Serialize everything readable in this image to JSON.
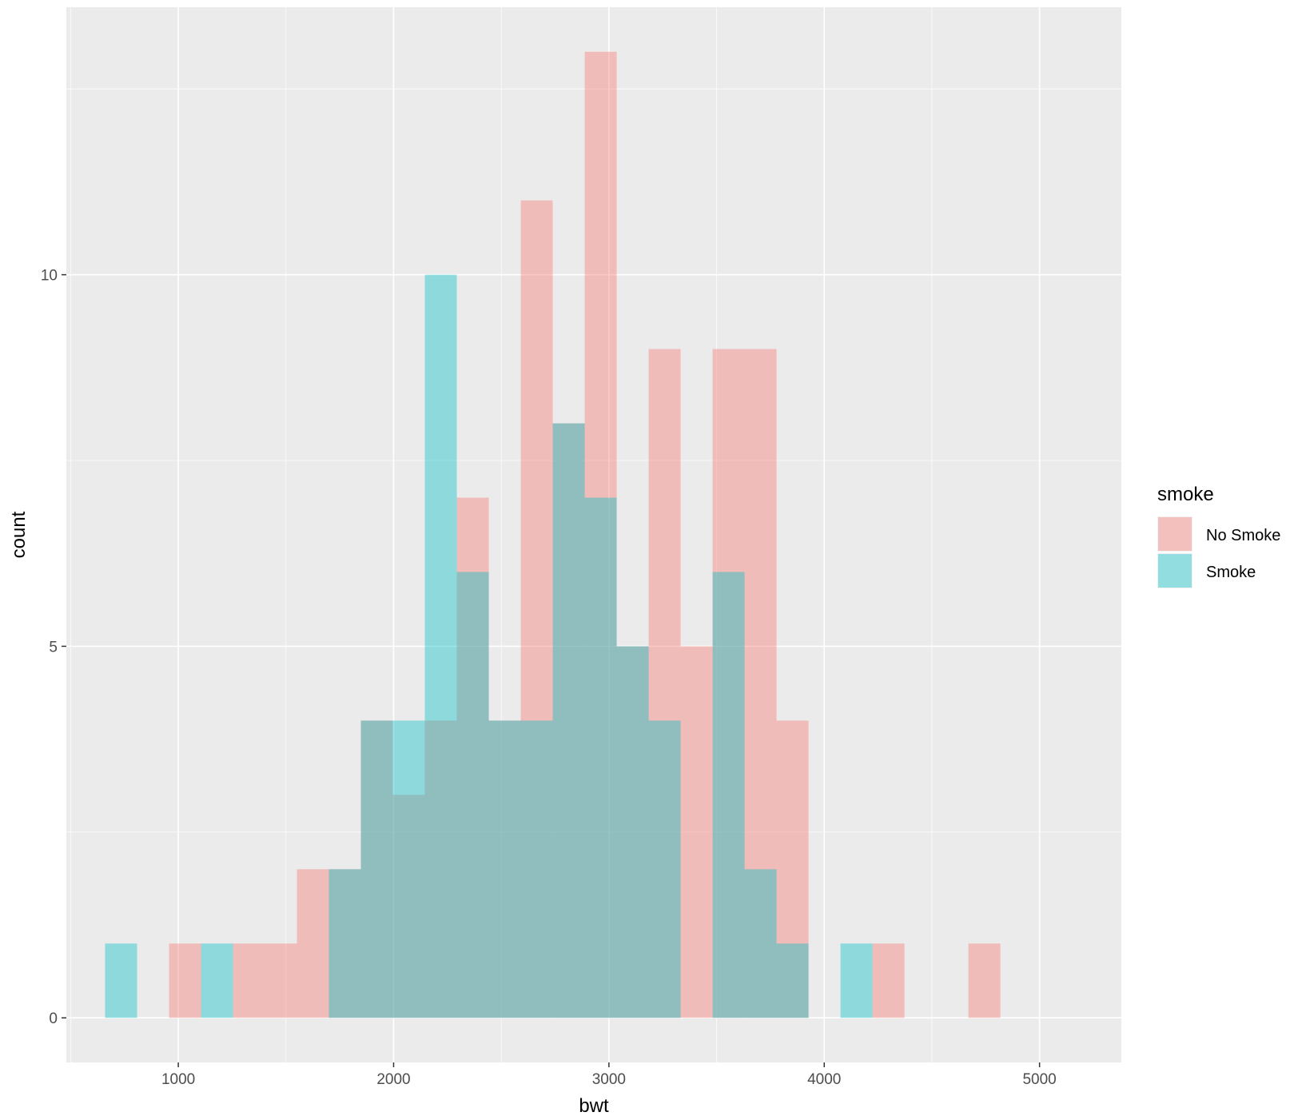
{
  "chart_data": {
    "type": "bar",
    "subtype": "histogram",
    "xlabel": "bwt",
    "ylabel": "count",
    "xlim": [
      480,
      5380
    ],
    "ylim": [
      -0.6,
      13.6
    ],
    "xticks": [
      1000,
      2000,
      3000,
      4000,
      5000
    ],
    "yticks": [
      0,
      5,
      10
    ],
    "grid": true,
    "bin_width": 148.5,
    "bin_start": 660,
    "legend": {
      "title": "smoke",
      "position": "right",
      "entries": [
        {
          "label": "No Smoke",
          "color": "#F8766D"
        },
        {
          "label": "Smoke",
          "color": "#00BFC4"
        }
      ]
    },
    "series": [
      {
        "name": "No Smoke",
        "color": "#F8766D",
        "values": [
          0,
          0,
          1,
          0,
          1,
          1,
          2,
          2,
          4,
          3,
          4,
          7,
          4,
          11,
          8,
          13,
          5,
          9,
          5,
          9,
          9,
          4,
          0,
          0,
          1,
          0,
          0,
          1
        ]
      },
      {
        "name": "Smoke",
        "color": "#00BFC4",
        "values": [
          1,
          0,
          0,
          1,
          0,
          0,
          0,
          2,
          4,
          4,
          10,
          6,
          4,
          4,
          8,
          7,
          5,
          4,
          0,
          6,
          2,
          1,
          0,
          1,
          0,
          0,
          0,
          0
        ]
      }
    ]
  }
}
